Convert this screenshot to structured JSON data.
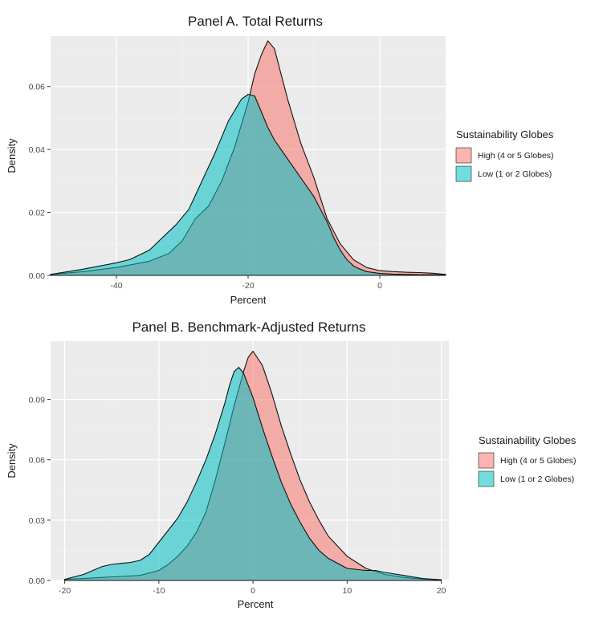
{
  "chart_data": [
    {
      "type": "area",
      "subtype": "density",
      "title": "Panel A. Total Returns",
      "xlabel": "Percent",
      "ylabel": "Density",
      "xlim": [
        -50,
        10
      ],
      "ylim": [
        0,
        0.076
      ],
      "xticks": [
        -40,
        -20,
        0
      ],
      "yticks": [
        0.0,
        0.02,
        0.04,
        0.06
      ],
      "ytick_labels": [
        "0.00",
        "0.02",
        "0.04",
        "0.06"
      ],
      "grid": true,
      "legend": {
        "title": "Sustainability Globes",
        "position": "right",
        "entries": [
          "High (4 or 5 Globes)",
          "Low (1 or 2 Globes)"
        ]
      },
      "series": [
        {
          "name": "High (4 or 5 Globes)",
          "color": "#F8766D",
          "x": [
            -50,
            -45,
            -40,
            -35,
            -32,
            -30,
            -28,
            -26,
            -24,
            -22,
            -20,
            -19,
            -18,
            -17,
            -16,
            -15,
            -14,
            -13,
            -12,
            -10,
            -8,
            -6,
            -4,
            -2,
            0,
            2,
            4,
            6,
            8,
            10
          ],
          "y": [
            0.0003,
            0.0012,
            0.0025,
            0.0045,
            0.007,
            0.011,
            0.018,
            0.022,
            0.03,
            0.041,
            0.055,
            0.064,
            0.07,
            0.0745,
            0.072,
            0.064,
            0.056,
            0.049,
            0.042,
            0.031,
            0.018,
            0.01,
            0.005,
            0.0025,
            0.0015,
            0.0012,
            0.001,
            0.0009,
            0.0007,
            0.0003
          ]
        },
        {
          "name": "Low (1 or 2 Globes)",
          "color": "#00BFC4",
          "x": [
            -50,
            -45,
            -40,
            -38,
            -35,
            -33,
            -31,
            -29,
            -27,
            -25,
            -23,
            -21,
            -20,
            -19,
            -18,
            -17,
            -16,
            -15,
            -14,
            -13,
            -12,
            -11,
            -10,
            -9,
            -8,
            -7,
            -6,
            -5,
            -4,
            -3,
            -2,
            0,
            2,
            4,
            6,
            8,
            10
          ],
          "y": [
            0.0003,
            0.002,
            0.004,
            0.005,
            0.008,
            0.012,
            0.016,
            0.021,
            0.03,
            0.039,
            0.049,
            0.056,
            0.0575,
            0.057,
            0.052,
            0.047,
            0.043,
            0.04,
            0.037,
            0.034,
            0.031,
            0.028,
            0.025,
            0.021,
            0.017,
            0.012,
            0.008,
            0.005,
            0.003,
            0.002,
            0.0012,
            0.0006,
            0.0004,
            0.0003,
            0.0002,
            0.0002,
            0.0001
          ]
        }
      ]
    },
    {
      "type": "area",
      "subtype": "density",
      "title": "Panel B. Benchmark-Adjusted Returns",
      "xlabel": "Percent",
      "ylabel": "Density",
      "xlim": [
        -21.5,
        20.8
      ],
      "ylim": [
        0,
        0.119
      ],
      "xticks": [
        -20,
        -10,
        0,
        10,
        20
      ],
      "yticks": [
        0.0,
        0.03,
        0.06,
        0.09
      ],
      "ytick_labels": [
        "0.00",
        "0.03",
        "0.06",
        "0.09"
      ],
      "grid": true,
      "legend": {
        "title": "Sustainability Globes",
        "position": "right",
        "entries": [
          "High (4 or 5 Globes)",
          "Low (1 or 2 Globes)"
        ]
      },
      "series": [
        {
          "name": "High (4 or 5 Globes)",
          "color": "#F8766D",
          "x": [
            -20,
            -18,
            -16,
            -14,
            -12,
            -10,
            -9,
            -8,
            -7,
            -6,
            -5,
            -4,
            -3,
            -2,
            -1,
            -0.5,
            0,
            1,
            2,
            3,
            4,
            5,
            6,
            7,
            8,
            10,
            12,
            14,
            16,
            18,
            20
          ],
          "y": [
            0.0005,
            0.001,
            0.0015,
            0.002,
            0.0025,
            0.005,
            0.008,
            0.012,
            0.017,
            0.024,
            0.034,
            0.05,
            0.068,
            0.087,
            0.104,
            0.111,
            0.114,
            0.107,
            0.093,
            0.077,
            0.063,
            0.05,
            0.039,
            0.03,
            0.022,
            0.012,
            0.006,
            0.003,
            0.0015,
            0.0007,
            0.0003
          ]
        },
        {
          "name": "Low (1 or 2 Globes)",
          "color": "#00BFC4",
          "x": [
            -20,
            -18,
            -16,
            -15,
            -14,
            -13,
            -12,
            -11,
            -10,
            -9,
            -8,
            -7,
            -6,
            -5,
            -4,
            -3,
            -2.5,
            -2,
            -1.5,
            -1,
            0,
            1,
            2,
            3,
            4,
            5,
            6,
            7,
            8,
            10,
            12,
            13,
            14,
            16,
            18,
            20
          ],
          "y": [
            0.0005,
            0.003,
            0.007,
            0.008,
            0.0085,
            0.009,
            0.01,
            0.013,
            0.019,
            0.025,
            0.031,
            0.039,
            0.049,
            0.06,
            0.073,
            0.088,
            0.097,
            0.104,
            0.106,
            0.103,
            0.091,
            0.076,
            0.062,
            0.049,
            0.038,
            0.029,
            0.021,
            0.015,
            0.011,
            0.006,
            0.005,
            0.005,
            0.004,
            0.0025,
            0.001,
            0.0003
          ]
        }
      ]
    }
  ]
}
